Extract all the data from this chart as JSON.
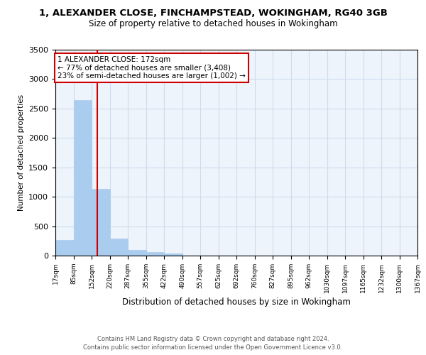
{
  "title": "1, ALEXANDER CLOSE, FINCHAMPSTEAD, WOKINGHAM, RG40 3GB",
  "subtitle": "Size of property relative to detached houses in Wokingham",
  "xlabel": "Distribution of detached houses by size in Wokingham",
  "ylabel": "Number of detached properties",
  "bar_edges": [
    17,
    85,
    152,
    220,
    287,
    355,
    422,
    490,
    557,
    625,
    692,
    760,
    827,
    895,
    962,
    1030,
    1097,
    1165,
    1232,
    1300,
    1367
  ],
  "bar_heights": [
    270,
    2640,
    1130,
    290,
    100,
    55,
    40,
    0,
    0,
    0,
    0,
    0,
    0,
    0,
    0,
    0,
    0,
    0,
    0,
    0
  ],
  "property_line_x": 172,
  "annotation_text": "1 ALEXANDER CLOSE: 172sqm\n← 77% of detached houses are smaller (3,408)\n23% of semi-detached houses are larger (1,002) →",
  "annotation_box_color": "#ffffff",
  "annotation_border_color": "#cc0000",
  "bar_color": "#aaccee",
  "bar_edge_color": "#aaccee",
  "line_color": "#cc0000",
  "grid_color": "#ccddee",
  "bg_color": "#eef4fb",
  "ylim": [
    0,
    3500
  ],
  "yticks": [
    0,
    500,
    1000,
    1500,
    2000,
    2500,
    3000,
    3500
  ],
  "tick_labels": [
    "17sqm",
    "85sqm",
    "152sqm",
    "220sqm",
    "287sqm",
    "355sqm",
    "422sqm",
    "490sqm",
    "557sqm",
    "625sqm",
    "692sqm",
    "760sqm",
    "827sqm",
    "895sqm",
    "962sqm",
    "1030sqm",
    "1097sqm",
    "1165sqm",
    "1232sqm",
    "1300sqm",
    "1367sqm"
  ],
  "footnote1": "Contains HM Land Registry data © Crown copyright and database right 2024.",
  "footnote2": "Contains public sector information licensed under the Open Government Licence v3.0."
}
